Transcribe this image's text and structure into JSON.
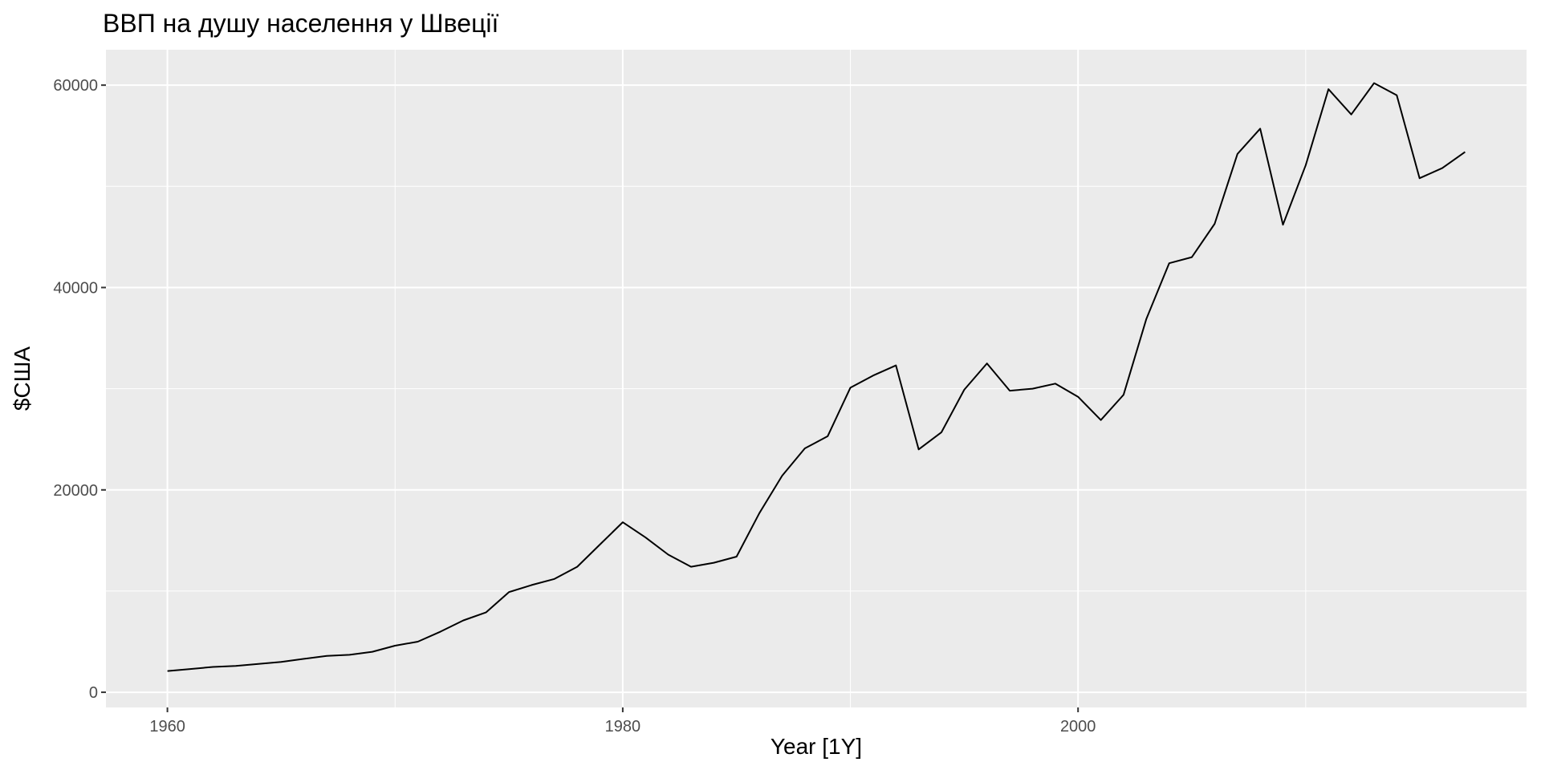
{
  "chart_data": {
    "type": "line",
    "title": "ВВП на душу населення у Швеції",
    "xlabel": "Year [1Y]",
    "ylabel": "$США",
    "xlim": [
      1957.3,
      2019.7
    ],
    "ylim": [
      -1500,
      63500
    ],
    "x_ticks": [
      1960,
      1980,
      2000
    ],
    "y_ticks": [
      0,
      20000,
      40000,
      60000
    ],
    "x_tick_labels": [
      "1960",
      "1980",
      "2000"
    ],
    "y_tick_labels": [
      "0",
      "20000",
      "40000",
      "60000"
    ],
    "grid": true,
    "background": "#ebebeb",
    "grid_color": "#ffffff",
    "line_color": "#000000",
    "series": [
      {
        "x": [
          1960,
          1961,
          1962,
          1963,
          1964,
          1965,
          1966,
          1967,
          1968,
          1969,
          1970,
          1971,
          1972,
          1973,
          1974,
          1975,
          1976,
          1977,
          1978,
          1979,
          1980,
          1981,
          1982,
          1983,
          1984,
          1985,
          1986,
          1987,
          1988,
          1989,
          1990,
          1991,
          1992,
          1993,
          1994,
          1995,
          1996,
          1997,
          1998,
          1999,
          2000,
          2001,
          2002,
          2003,
          2004,
          2005,
          2006,
          2007,
          2008,
          2009,
          2010,
          2011,
          2012,
          2013,
          2014,
          2015,
          2016,
          2017
        ],
        "values": [
          2100,
          2300,
          2500,
          2600,
          2800,
          3000,
          3300,
          3600,
          3700,
          4000,
          4600,
          5000,
          6000,
          7100,
          7900,
          9900,
          10600,
          11200,
          12400,
          14600,
          16800,
          15300,
          13600,
          12400,
          12800,
          13400,
          17700,
          21400,
          24100,
          25300,
          30100,
          31300,
          32300,
          24000,
          25700,
          29900,
          32500,
          29800,
          30000,
          30500,
          29200,
          26900,
          29400,
          36900,
          42400,
          43000,
          46300,
          53200,
          55700,
          46200,
          52100,
          59600,
          57100,
          60200,
          59000,
          50800,
          51800,
          53400
        ]
      }
    ]
  }
}
